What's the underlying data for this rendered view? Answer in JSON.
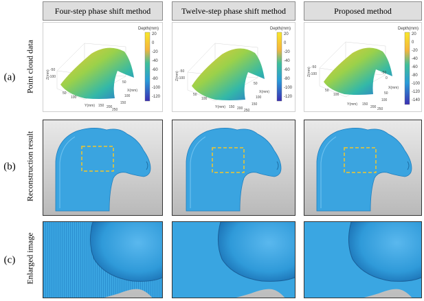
{
  "columns": [
    {
      "title": "Four-step phase shift method"
    },
    {
      "title": "Twelve-step phase shift method"
    },
    {
      "title": "Proposed method"
    }
  ],
  "rows": [
    {
      "letter": "(a)",
      "label": "Point cloud data"
    },
    {
      "letter": "(b)",
      "label": "Reconstruction result"
    },
    {
      "letter": "(c)",
      "label": "Enlarged image"
    }
  ],
  "point_cloud": [
    {
      "colorbar_title": "Depth(mm)",
      "colorbar_ticks": [
        "20",
        "0",
        "-20",
        "-40",
        "-60",
        "-80",
        "-100",
        "-120"
      ],
      "z_label": "Z(mm)",
      "z_ticks": [
        "-50",
        "-100"
      ],
      "x_label": "X(mm)",
      "x_ticks": [
        "50",
        "100",
        "150"
      ],
      "y_label": "Y(mm)",
      "y_ticks": [
        "50",
        "100",
        "150",
        "200",
        "250"
      ]
    },
    {
      "colorbar_title": "Depth(mm)",
      "colorbar_ticks": [
        "20",
        "0",
        "-20",
        "-40",
        "-60",
        "-80",
        "-100",
        "-120"
      ],
      "z_label": "Z(mm)",
      "z_ticks": [
        "-50",
        "-100"
      ],
      "x_label": "X(mm)",
      "x_ticks": [
        "50",
        "100",
        "150"
      ],
      "y_label": "Y(mm)",
      "y_ticks": [
        "50",
        "100",
        "150",
        "200",
        "250"
      ]
    },
    {
      "colorbar_title": "Depth(mm)",
      "colorbar_ticks": [
        "20",
        "0",
        "-20",
        "-40",
        "-60",
        "-80",
        "-100",
        "-120",
        "-140"
      ],
      "z_label": "Z(mm)",
      "z_ticks": [
        "-50",
        "-100"
      ],
      "x_label": "X(mm)",
      "x_ticks": [
        "-50",
        "0",
        "50",
        "100"
      ],
      "y_label": "Y(mm)",
      "y_ticks": [
        "50",
        "100",
        "150",
        "200",
        "250"
      ]
    }
  ],
  "colors": {
    "mesh_blue": "#3aa4e0",
    "highlight_box": "#f2c62b",
    "header_bg": "#dedede"
  }
}
